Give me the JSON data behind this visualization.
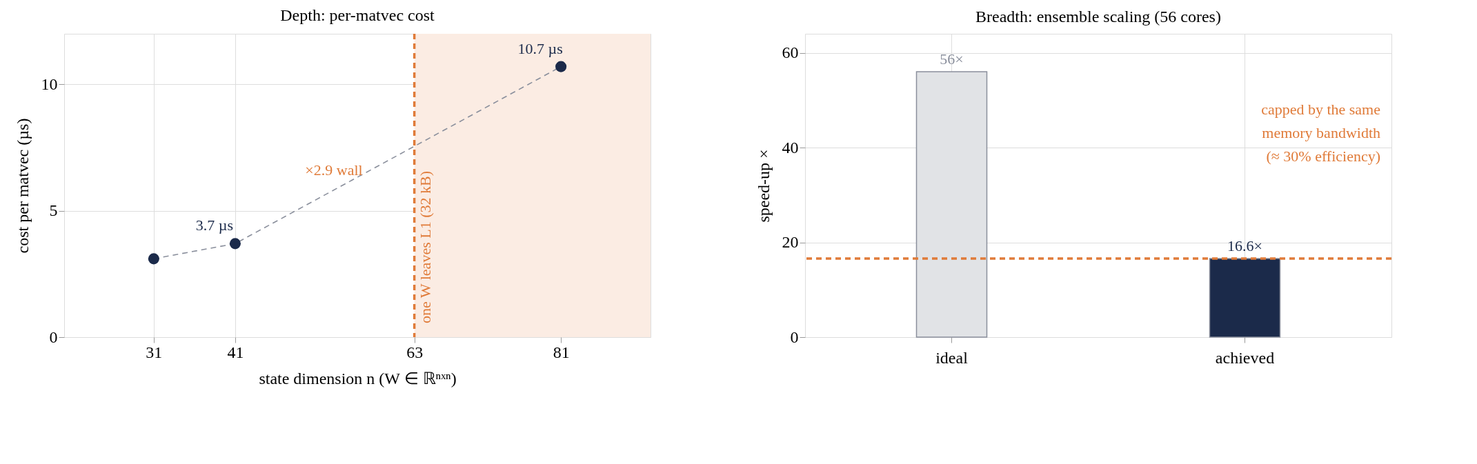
{
  "chart_data": [
    {
      "type": "line",
      "title": "Depth: per-matvec cost",
      "xlabel": "state dimension n (W ∈ ℝⁿˣⁿ)",
      "ylabel": "cost per matvec (µs)",
      "x": [
        31,
        41,
        81
      ],
      "series": [
        {
          "color": "#1b2a4a",
          "values": [
            3.1,
            3.7,
            10.7
          ],
          "value_labels": [
            null,
            "3.7 µs",
            "10.7 µs"
          ]
        }
      ],
      "marker": "circle",
      "line_style": "dashed",
      "xlim": [
        20,
        92
      ],
      "xticks": [
        31,
        41,
        63,
        81
      ],
      "ylim": [
        0,
        12
      ],
      "yticks": [
        0,
        5,
        10
      ],
      "grid": true,
      "legend": false,
      "ref_lines": [
        {
          "axis": "x",
          "value": 63,
          "label": "one W leaves L1 (32 kB)",
          "color": "#e07b39",
          "line_style": "dashed"
        }
      ],
      "bands": [
        {
          "axis": "x",
          "from": 63,
          "to": 92,
          "color": "#fbece3"
        }
      ],
      "annotations": [
        "×2.9 wall"
      ]
    },
    {
      "type": "bar",
      "title": "Breadth: ensemble scaling (56 cores)",
      "ylabel": "speed-up ×",
      "categories": [
        "ideal",
        "achieved"
      ],
      "values": [
        56,
        16.6
      ],
      "colors": [
        "#e1e3e6",
        "#1b2a4a"
      ],
      "value_labels": [
        "56×",
        "16.6×"
      ],
      "ylim": [
        0,
        64
      ],
      "yticks": [
        0,
        20,
        40,
        60
      ],
      "grid": true,
      "legend": false,
      "ref_lines": [
        {
          "axis": "y",
          "value": 16.6,
          "color": "#e07b39",
          "line_style": "dashed"
        }
      ],
      "annotations": [
        "capped by the same\nmemory bandwidth\n(≈ 30% efficiency)"
      ]
    }
  ]
}
